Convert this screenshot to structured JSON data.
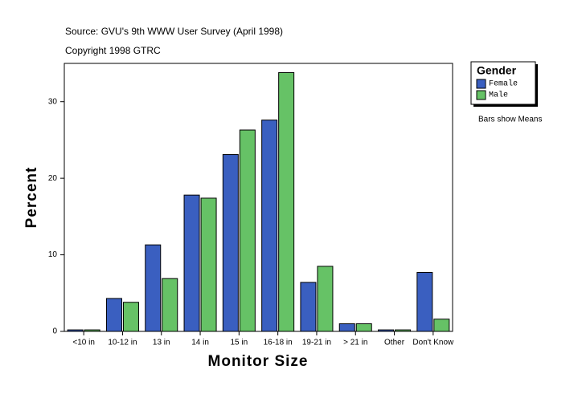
{
  "chart_data": {
    "type": "bar",
    "title": "Source: GVU's 9th WWW User Survey (April 1998)",
    "subtitle": "Copyright 1998 GTRC",
    "x_label": "Monitor Size",
    "y_label": "Percent",
    "legend_title": "Gender",
    "note": "Bars show Means",
    "categories": [
      "<10 in",
      "10-12 in",
      "13 in",
      "14 in",
      "15 in",
      "16-18 in",
      "19-21 in",
      "> 21 in",
      "Other",
      "Don't Know"
    ],
    "series": [
      {
        "name": "Female",
        "color": "#3a5fc0",
        "values": [
          0.2,
          4.3,
          11.3,
          17.8,
          23.1,
          27.6,
          6.4,
          1.0,
          0.2,
          7.7
        ]
      },
      {
        "name": "Male",
        "color": "#66c266",
        "values": [
          0.2,
          3.8,
          6.9,
          17.4,
          26.3,
          33.8,
          8.5,
          1.0,
          0.2,
          1.6
        ]
      }
    ],
    "ylim": [
      0,
      35
    ],
    "yticks": [
      0,
      10,
      20,
      30
    ]
  }
}
